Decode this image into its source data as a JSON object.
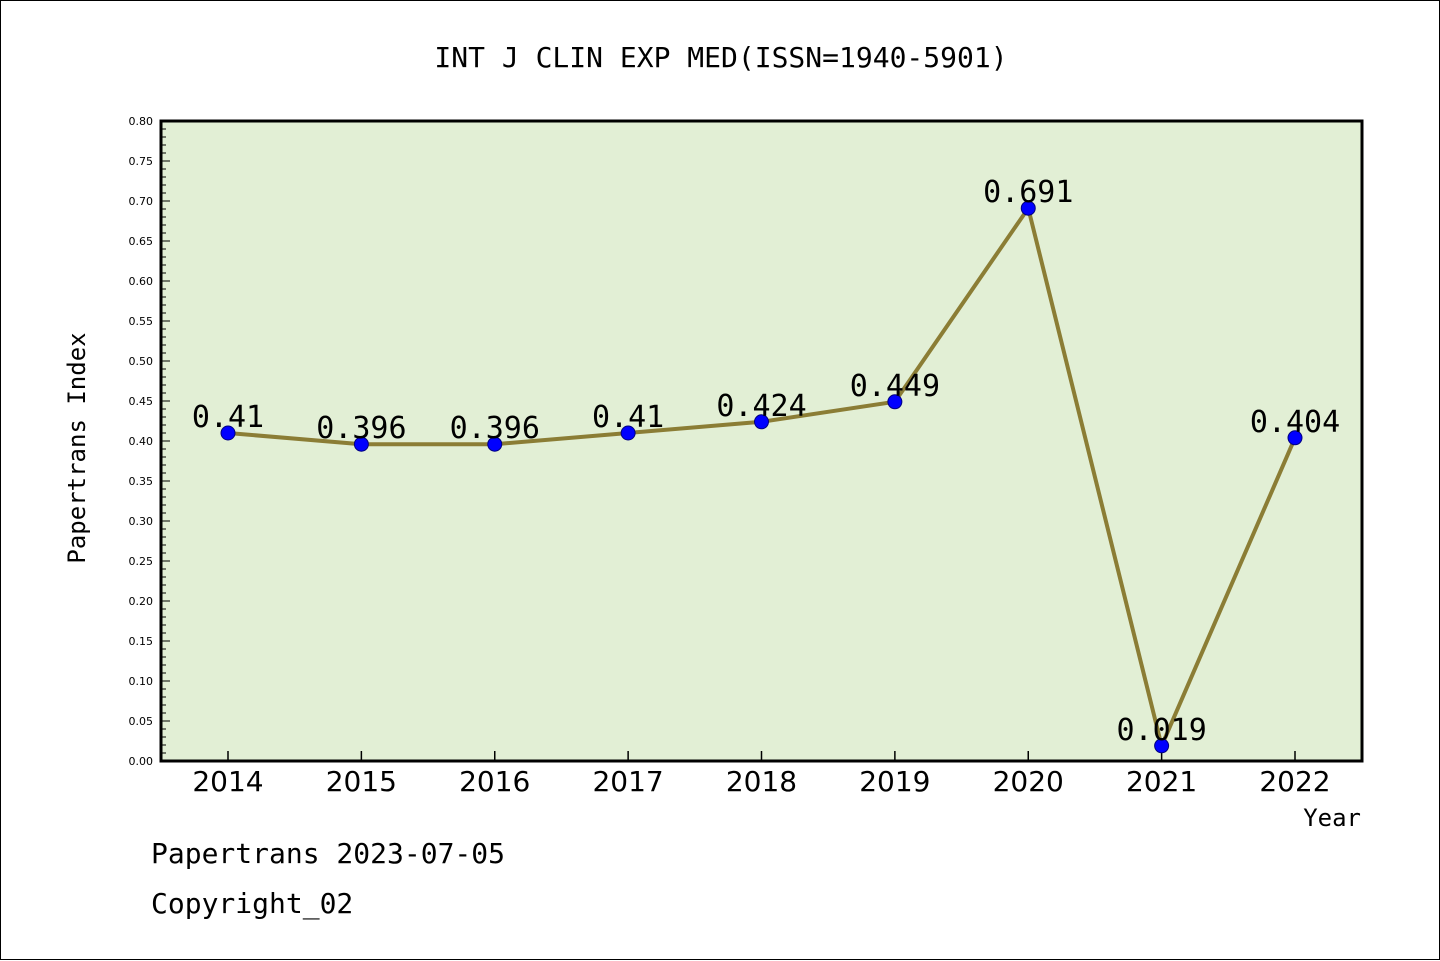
{
  "footer": {
    "line1": "Papertrans 2023-07-05",
    "line2": "Copyright_02"
  },
  "chart_data": {
    "type": "line",
    "title": "INT J CLIN EXP MED(ISSN=1940-5901)",
    "xlabel": "Year",
    "ylabel": "Papertrans Index",
    "categories": [
      "2014",
      "2015",
      "2016",
      "2017",
      "2018",
      "2019",
      "2020",
      "2021",
      "2022"
    ],
    "series": [
      {
        "values": [
          0.41,
          0.396,
          0.396,
          0.41,
          0.424,
          0.449,
          0.691,
          0.019,
          0.404
        ],
        "labels": [
          "0.41",
          "0.396",
          "0.396",
          "0.41",
          "0.424",
          "0.449",
          "0.691",
          "0.019",
          "0.404"
        ]
      }
    ],
    "ylim": [
      0,
      0.8
    ],
    "yticks": [
      "0.00",
      "0.05",
      "0.10",
      "0.15",
      "0.20",
      "0.25",
      "0.30",
      "0.35",
      "0.40",
      "0.45",
      "0.50",
      "0.55",
      "0.60",
      "0.65",
      "0.70",
      "0.75",
      "0.80"
    ],
    "grid": false,
    "colors": {
      "plot_background": "#e2efd5",
      "line": "#8b7d35",
      "marker_fill": "#0000ff",
      "marker_edge": "#000080",
      "axis": "#000000"
    }
  }
}
